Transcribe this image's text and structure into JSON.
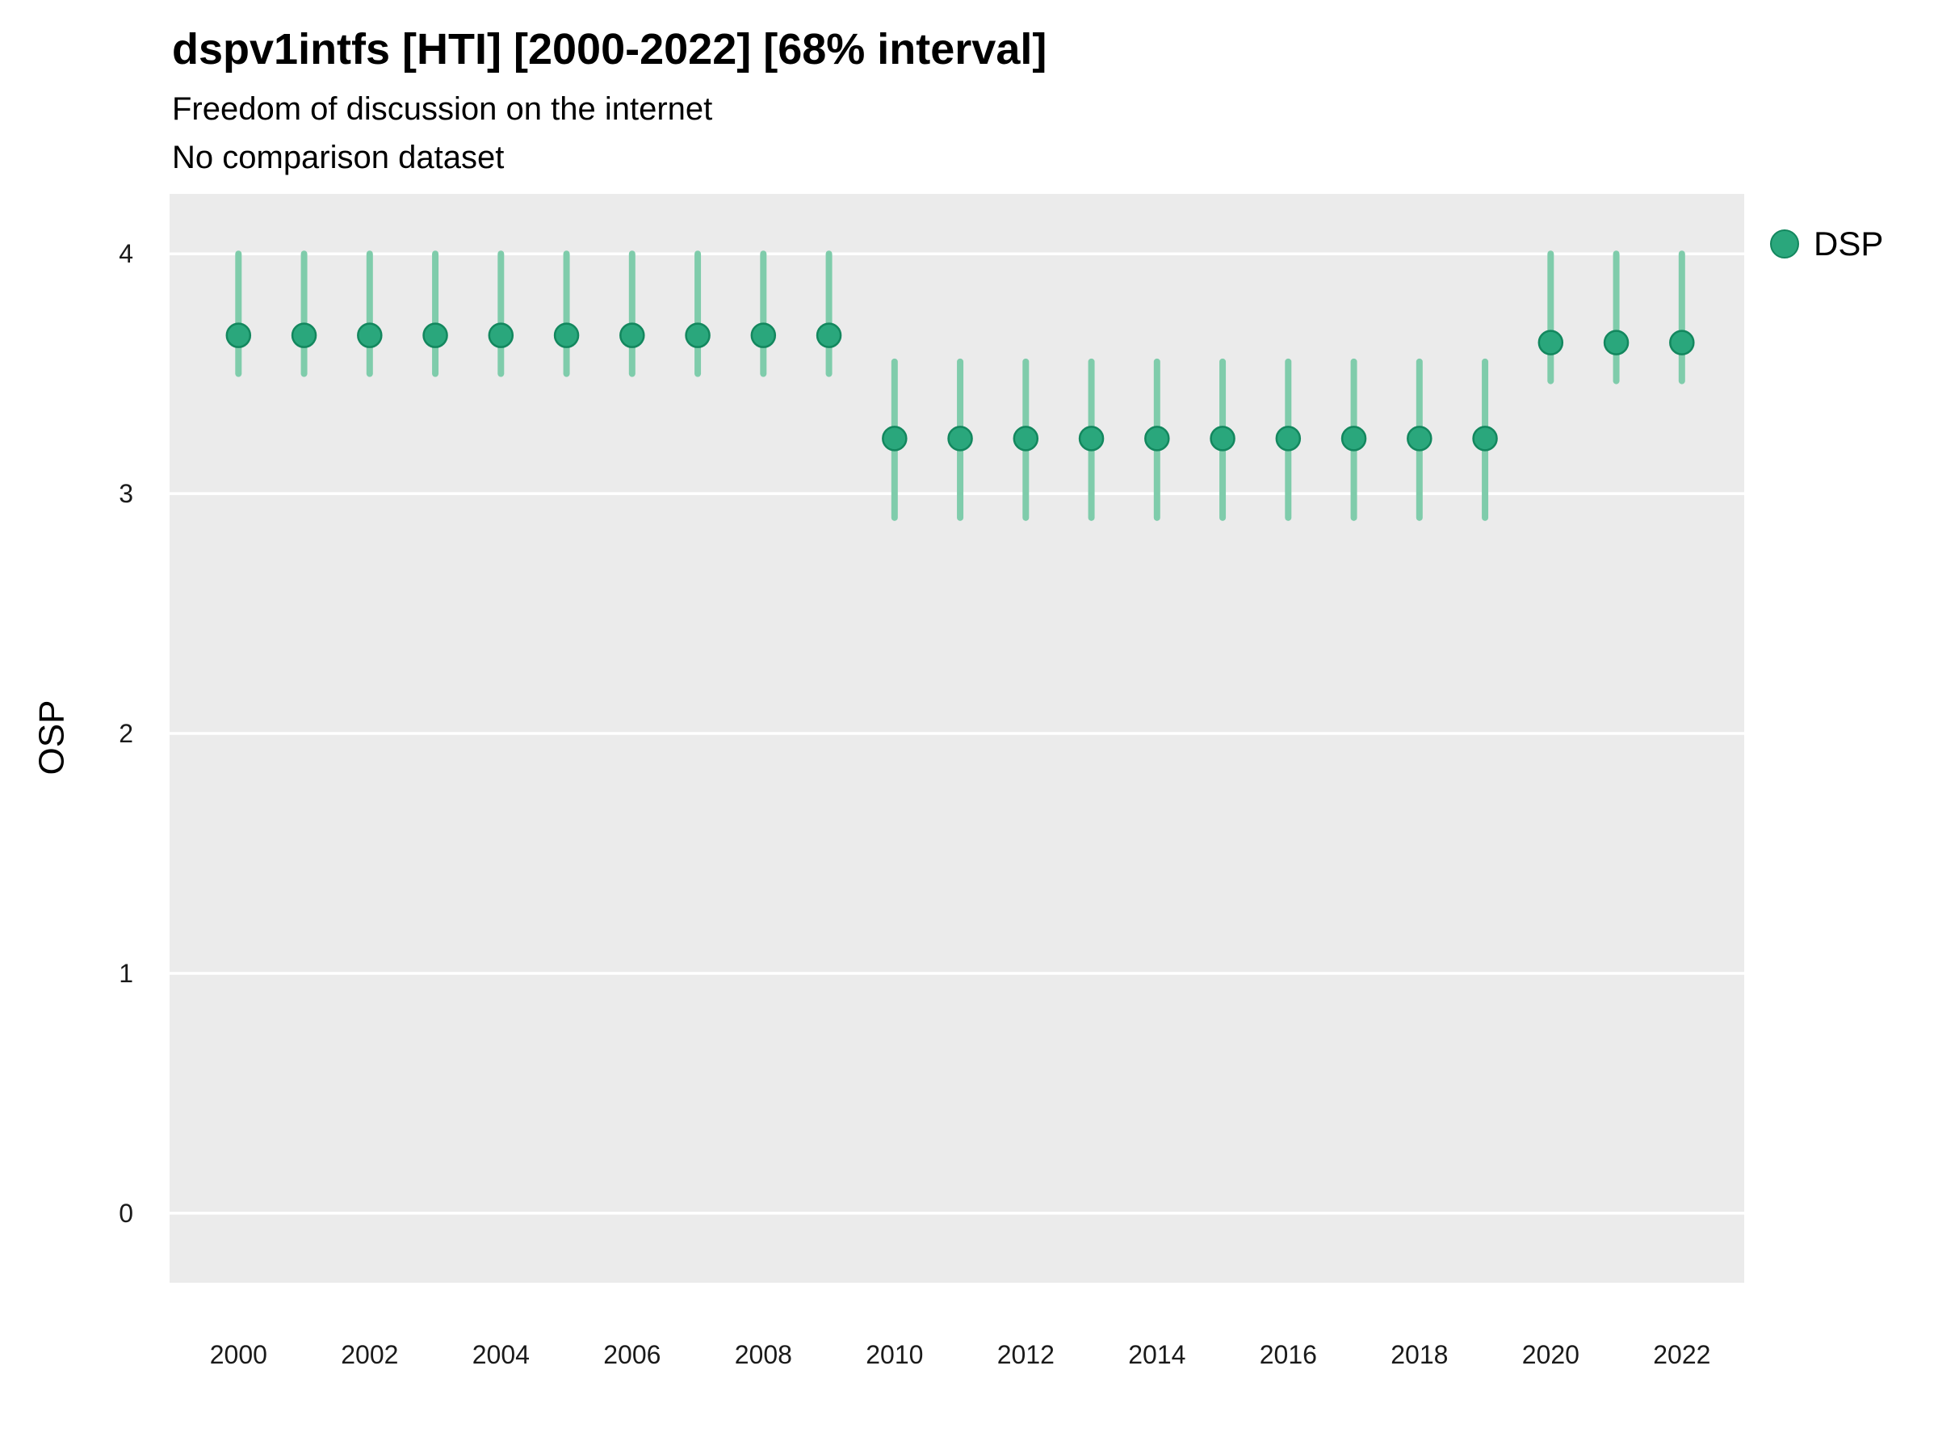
{
  "title": "dspv1intfs [HTI] [2000-2022] [68% interval]",
  "subtitle1": "Freedom of discussion on the internet",
  "subtitle2": "No comparison dataset",
  "ylabel": "OSP",
  "legend": {
    "label": "DSP"
  },
  "colors": {
    "point": "#2aa77c",
    "point_border": "#13875e",
    "interval": "#7fccab",
    "panel": "#ebebeb",
    "grid": "#ffffff",
    "tick_text": "#1a1a1a"
  },
  "chart_data": {
    "type": "pointrange",
    "title": "dspv1intfs [HTI] [2000-2022] [68% interval]",
    "subtitle": "Freedom of discussion on the internet",
    "note": "No comparison dataset",
    "xlabel": "",
    "ylabel": "OSP",
    "legend_position": "right",
    "grid": "major-horizontal",
    "x": [
      2000,
      2001,
      2002,
      2003,
      2004,
      2005,
      2006,
      2007,
      2008,
      2009,
      2010,
      2011,
      2012,
      2013,
      2014,
      2015,
      2016,
      2017,
      2018,
      2019,
      2020,
      2021,
      2022
    ],
    "series": [
      {
        "name": "DSP",
        "values": [
          3.66,
          3.66,
          3.66,
          3.66,
          3.66,
          3.66,
          3.66,
          3.66,
          3.66,
          3.66,
          3.23,
          3.23,
          3.23,
          3.23,
          3.23,
          3.23,
          3.23,
          3.23,
          3.23,
          3.23,
          3.63,
          3.63,
          3.63
        ],
        "low": [
          3.5,
          3.5,
          3.5,
          3.5,
          3.5,
          3.5,
          3.5,
          3.5,
          3.5,
          3.5,
          2.9,
          2.9,
          2.9,
          2.9,
          2.9,
          2.9,
          2.9,
          2.9,
          2.9,
          2.9,
          3.47,
          3.47,
          3.47
        ],
        "high": [
          4.0,
          4.0,
          4.0,
          4.0,
          4.0,
          4.0,
          4.0,
          4.0,
          4.0,
          4.0,
          3.55,
          3.55,
          3.55,
          3.55,
          3.55,
          3.55,
          3.55,
          3.55,
          3.55,
          3.55,
          4.0,
          4.0,
          4.0
        ]
      }
    ],
    "x_ticks": [
      2000,
      2002,
      2004,
      2006,
      2008,
      2010,
      2012,
      2014,
      2016,
      2018,
      2020,
      2022
    ],
    "y_ticks": [
      0,
      1,
      2,
      3,
      4
    ],
    "xlim": [
      1998.95,
      2022.95
    ],
    "ylim": [
      -0.29,
      4.25
    ]
  }
}
